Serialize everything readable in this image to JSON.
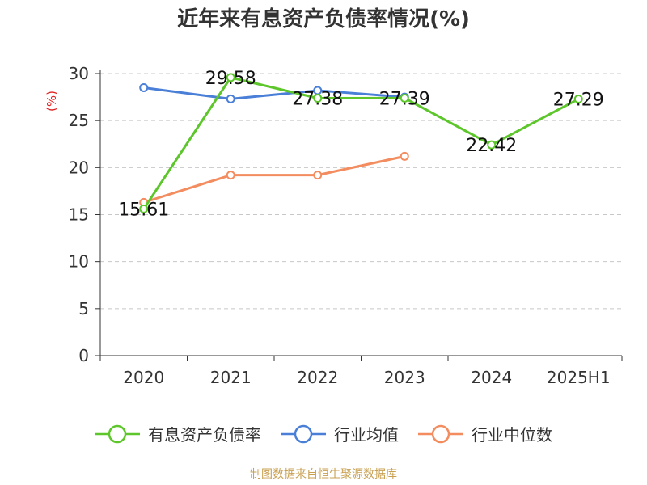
{
  "chart_data": {
    "type": "line",
    "title": "近年来有息资产负债率情况(%)",
    "ylabel": "(%)",
    "xlabel": "",
    "categories": [
      "2020",
      "2021",
      "2022",
      "2023",
      "2024",
      "2025H1"
    ],
    "ylim": [
      0,
      30
    ],
    "yticks": [
      0,
      5,
      10,
      15,
      20,
      25,
      30
    ],
    "grid": "horizontal-dashed",
    "legend_position": "bottom",
    "series": [
      {
        "name": "有息资产负债率",
        "color": "#5cc62a",
        "values": [
          15.61,
          29.58,
          27.38,
          27.39,
          22.42,
          27.29
        ],
        "labels": [
          "15.61",
          "29.58",
          "27.38",
          "27.39",
          "22.42",
          "27.29"
        ]
      },
      {
        "name": "行业均值",
        "color": "#4a7fd8",
        "values": [
          28.5,
          27.3,
          28.2,
          27.5,
          null,
          null
        ]
      },
      {
        "name": "行业中位数",
        "color": "#f38c5e",
        "values": [
          16.3,
          19.2,
          19.2,
          21.2,
          null,
          null
        ]
      }
    ]
  },
  "source_note": "制图数据来自恒生聚源数据库"
}
